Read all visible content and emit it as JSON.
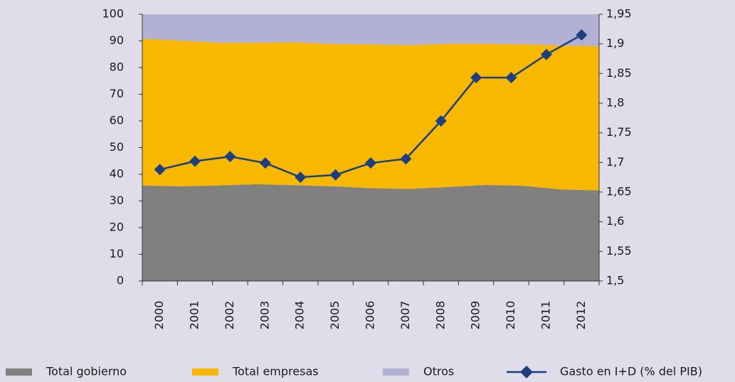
{
  "chart_data": {
    "type": "stacked-area-line",
    "categories": [
      "2000",
      "2001",
      "2002",
      "2003",
      "2004",
      "2005",
      "2006",
      "2007",
      "2008",
      "2009",
      "2010",
      "2011",
      "2012"
    ],
    "series": [
      {
        "name": "Total gobierno",
        "color": "#808080",
        "values": [
          35.8,
          35.5,
          35.8,
          36.3,
          35.9,
          35.5,
          34.8,
          34.5,
          35.2,
          36.0,
          35.7,
          34.3,
          34.0
        ]
      },
      {
        "name": "Total empresas",
        "color": "#f9b800",
        "values": [
          55.0,
          54.6,
          53.5,
          53.0,
          53.6,
          53.3,
          53.9,
          53.9,
          53.7,
          52.9,
          53.0,
          54.0,
          54.0
        ]
      },
      {
        "name": "Otros",
        "color": "#b2b0d4",
        "values": [
          9.2,
          9.9,
          10.7,
          10.7,
          10.5,
          11.2,
          11.3,
          11.6,
          11.1,
          11.1,
          11.3,
          11.7,
          12.0
        ]
      },
      {
        "name": "Gasto en I+D (% del PIB)",
        "color": "#1d3f80",
        "axis": "y2",
        "values": [
          1.688,
          1.702,
          1.71,
          1.699,
          1.675,
          1.679,
          1.699,
          1.706,
          1.77,
          1.843,
          1.843,
          1.882,
          1.915
        ]
      }
    ],
    "ylim": [
      0,
      100
    ],
    "yticks": [
      0,
      10,
      20,
      30,
      40,
      50,
      60,
      70,
      80,
      90,
      100
    ],
    "y2lim": [
      1.5,
      1.95
    ],
    "y2ticks": [
      {
        "value": 1.5,
        "label": "1,5"
      },
      {
        "value": 1.55,
        "label": "1,55"
      },
      {
        "value": 1.6,
        "label": "1,6"
      },
      {
        "value": 1.65,
        "label": "1,65"
      },
      {
        "value": 1.7,
        "label": "1,7"
      },
      {
        "value": 1.75,
        "label": "1,75"
      },
      {
        "value": 1.8,
        "label": "1,8"
      },
      {
        "value": 1.85,
        "label": "1,85"
      },
      {
        "value": 1.9,
        "label": "1,9"
      },
      {
        "value": 1.95,
        "label": "1,95"
      }
    ],
    "legend": "bottom"
  }
}
